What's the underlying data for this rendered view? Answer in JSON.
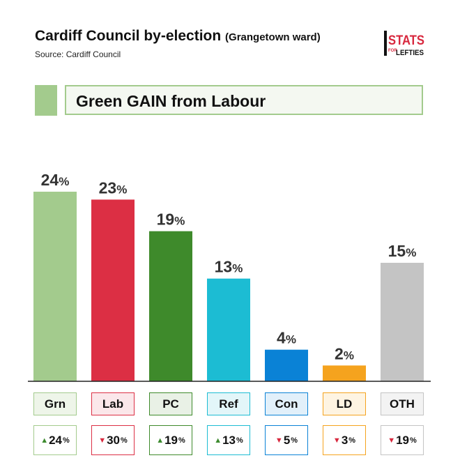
{
  "header": {
    "title": "Cardiff Council by-election",
    "subtitle": "(Grangetown ward)",
    "source": "Source: Cardiff Council"
  },
  "logo": {
    "line1": "STATS",
    "line2": "FOR",
    "line3": "LEFTIES"
  },
  "banner": {
    "text": "Green GAIN from Labour",
    "color": "#a3cb8d"
  },
  "chart_data": {
    "type": "bar",
    "categories": [
      "Grn",
      "Lab",
      "PC",
      "Ref",
      "Con",
      "LD",
      "OTH"
    ],
    "values": [
      24,
      23,
      19,
      13,
      4,
      2,
      15
    ],
    "value_suffix": "%",
    "colors": [
      "#a3cb8d",
      "#dc2f44",
      "#3e8a2b",
      "#1cbcd3",
      "#0a82d6",
      "#f5a31e",
      "#c4c4c4"
    ],
    "ylim": [
      0,
      24
    ],
    "grid": false,
    "changes": [
      {
        "direction": "up",
        "value": "24",
        "suffix": "%"
      },
      {
        "direction": "down",
        "value": "30",
        "suffix": "%"
      },
      {
        "direction": "up",
        "value": "19",
        "suffix": "%"
      },
      {
        "direction": "up",
        "value": "13",
        "suffix": "%"
      },
      {
        "direction": "down",
        "value": "5",
        "suffix": "%"
      },
      {
        "direction": "down",
        "value": "3",
        "suffix": "%"
      },
      {
        "direction": "down",
        "value": "19",
        "suffix": "%"
      }
    ],
    "box_backgrounds": [
      "#eef5e9",
      "#fbe7ea",
      "#e9f1e6",
      "#e3f6f9",
      "#e2f0fa",
      "#fef4e2",
      "#f3f3f3"
    ]
  }
}
